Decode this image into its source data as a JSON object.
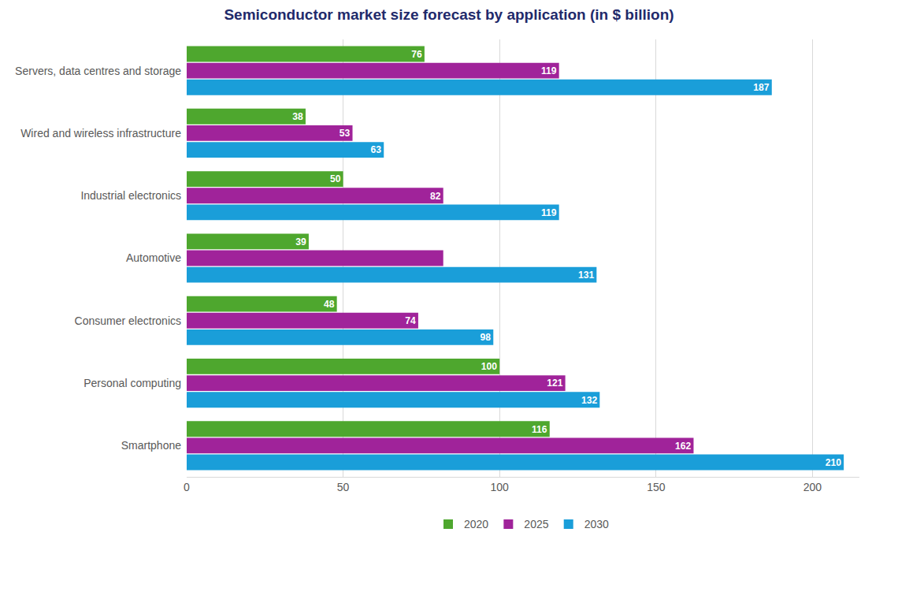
{
  "chart_data": {
    "type": "bar",
    "orientation": "horizontal",
    "title": "Semiconductor market size forecast by application (in $ billion)",
    "categories": [
      "Servers, data centres and storage",
      "Wired and wireless infrastructure",
      "Industrial electronics",
      "Automotive",
      "Consumer electronics",
      "Personal computing",
      "Smartphone"
    ],
    "series": [
      {
        "name": "2020",
        "color": "#4ea72e",
        "values": [
          76,
          38,
          50,
          39,
          48,
          100,
          116
        ]
      },
      {
        "name": "2025",
        "color": "#a0239a",
        "values": [
          119,
          53,
          82,
          82,
          74,
          121,
          162
        ],
        "value_labels": [
          "119",
          "53",
          "82",
          null,
          "74",
          "121",
          "162"
        ]
      },
      {
        "name": "2030",
        "color": "#1a9ed9",
        "values": [
          187,
          63,
          119,
          131,
          98,
          132,
          210
        ]
      }
    ],
    "xlim": [
      0,
      215
    ],
    "xticks": [
      0,
      50,
      100,
      150,
      200
    ],
    "grid": true,
    "data_labels": true,
    "legend": "bottom"
  }
}
